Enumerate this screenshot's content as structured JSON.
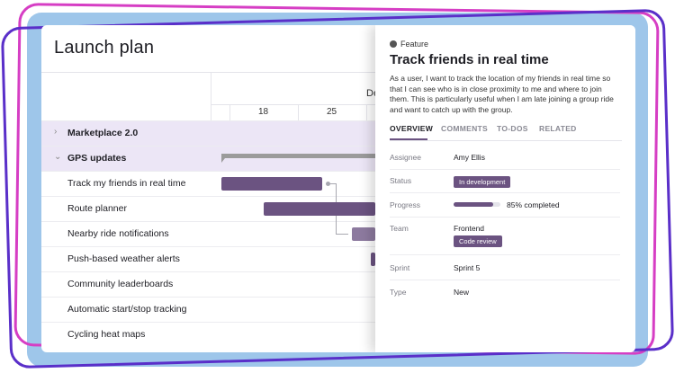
{
  "app": {
    "title": "Launch plan"
  },
  "timeline": {
    "month_label": "De",
    "weeks": [
      "18",
      "25"
    ]
  },
  "rows": [
    {
      "label": "Marketplace 2.0",
      "group": true,
      "chevron": "›"
    },
    {
      "label": "GPS updates",
      "group": true,
      "chevron": "⌄"
    },
    {
      "label": "Track my friends in real time"
    },
    {
      "label": "Route planner"
    },
    {
      "label": "Nearby ride notifications"
    },
    {
      "label": "Push-based weather alerts"
    },
    {
      "label": "Community leaderboards"
    },
    {
      "label": "Automatic start/stop tracking"
    },
    {
      "label": "Cycling heat maps"
    }
  ],
  "panel": {
    "kicker": "Feature",
    "title": "Track friends in real time",
    "description": "As a user, I want to track the location of my friends in real time so that I can see who is in close proximity to me and where to join them. This is particularly useful when I am late joining a group ride and want to catch up with the group.",
    "tabs": [
      "OVERVIEW",
      "COMMENTS",
      "TO-DOS",
      "RELATED"
    ],
    "fields": {
      "assignee": {
        "label": "Assignee",
        "value": "Amy Ellis"
      },
      "status": {
        "label": "Status",
        "value": "In development"
      },
      "progress": {
        "label": "Progress",
        "value": "85% completed",
        "fraction": 0.85
      },
      "team": {
        "label": "Team",
        "value": "Frontend",
        "badge": "Code review"
      },
      "sprint": {
        "label": "Sprint",
        "value": "Sprint 5"
      },
      "type": {
        "label": "Type",
        "value": "New"
      }
    }
  },
  "colors": {
    "accent": "#6b5381",
    "group_row": "#ece6f6"
  }
}
